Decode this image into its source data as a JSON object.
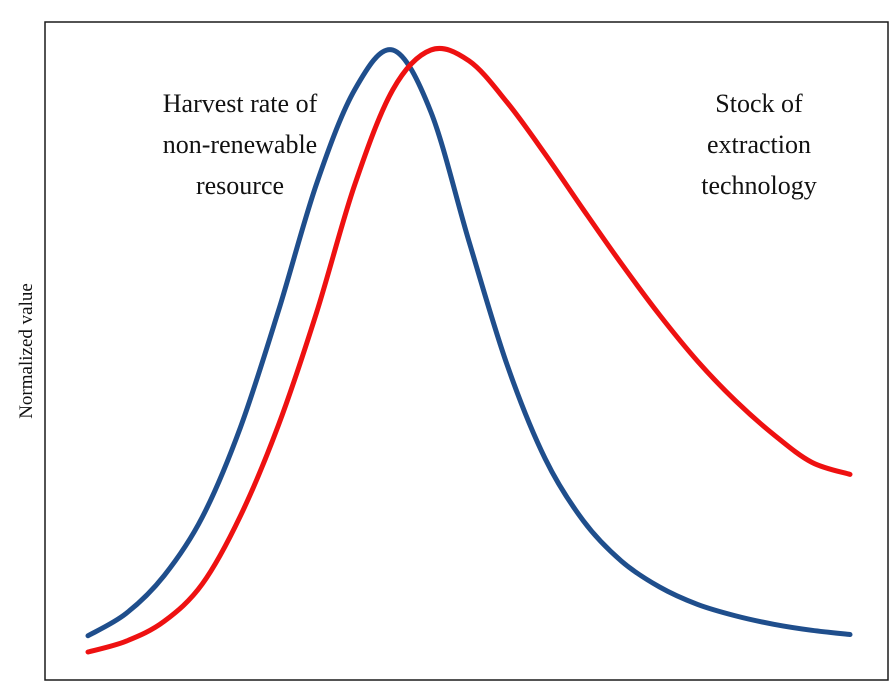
{
  "chart_data": {
    "type": "line",
    "title": "",
    "xlabel": "",
    "ylabel": "Normalized value",
    "ylim": [
      0,
      1
    ],
    "grid": false,
    "legend": "none",
    "series": [
      {
        "name": "Harvest rate of non-renewable resource",
        "label_lines": [
          "Harvest rate of",
          "non-renewable",
          "resource"
        ],
        "color": "#1f4e8c",
        "x": [
          0,
          0.05,
          0.1,
          0.15,
          0.2,
          0.25,
          0.3,
          0.35,
          0.4,
          0.45,
          0.5,
          0.55,
          0.6,
          0.65,
          0.7,
          0.75,
          0.8,
          0.85,
          0.9,
          0.95,
          1.0
        ],
        "y": [
          0.027,
          0.064,
          0.127,
          0.224,
          0.373,
          0.567,
          0.778,
          0.934,
          1.0,
          0.897,
          0.682,
          0.477,
          0.321,
          0.218,
          0.151,
          0.108,
          0.079,
          0.06,
          0.046,
          0.036,
          0.029
        ]
      },
      {
        "name": "Stock of extraction technology",
        "label_lines": [
          "Stock of",
          "extraction",
          "technology"
        ],
        "color": "#ee1111",
        "x": [
          0,
          0.05,
          0.1,
          0.15,
          0.2,
          0.25,
          0.3,
          0.35,
          0.4,
          0.45,
          0.5,
          0.55,
          0.6,
          0.65,
          0.7,
          0.75,
          0.8,
          0.85,
          0.9,
          0.95,
          1.0
        ],
        "y": [
          0.0,
          0.018,
          0.051,
          0.113,
          0.226,
          0.377,
          0.564,
          0.776,
          0.934,
          1.0,
          0.982,
          0.913,
          0.827,
          0.735,
          0.645,
          0.56,
          0.483,
          0.417,
          0.361,
          0.315,
          0.295
        ]
      }
    ]
  }
}
